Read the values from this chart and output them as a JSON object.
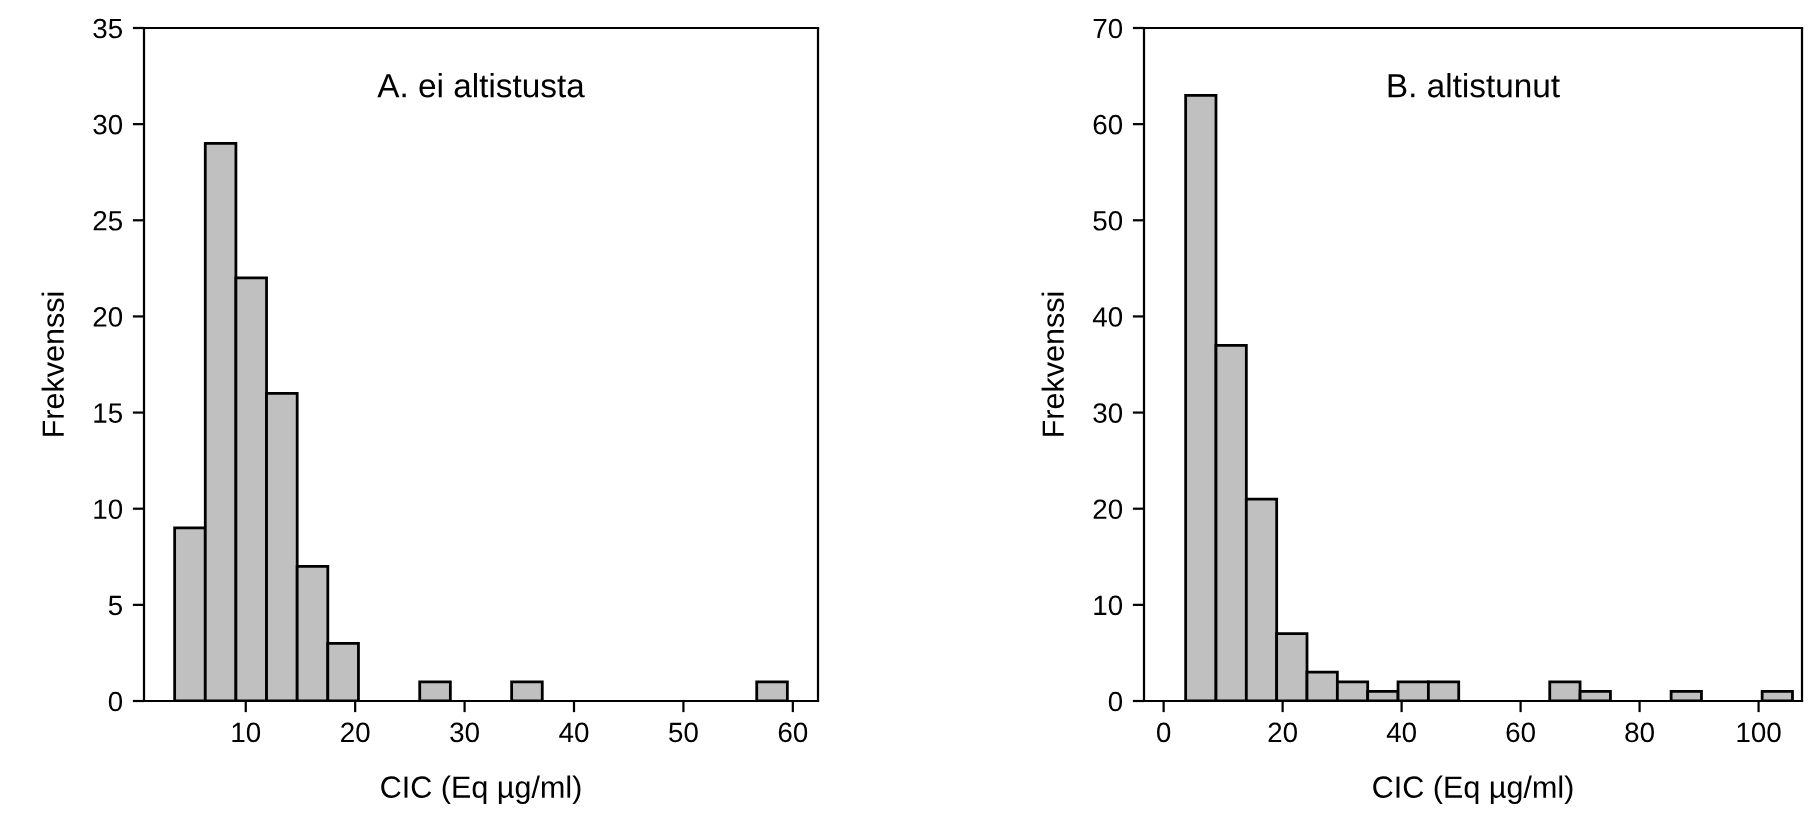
{
  "chart_data": [
    {
      "type": "histogram",
      "title": "A. ei altistusta",
      "xlabel": "CIC (Eq µg/ml)",
      "ylabel": "Frekvenssi",
      "color": "#c0c0c0",
      "bins": [
        3.5,
        6.3,
        9.1,
        11.9,
        14.7,
        17.5,
        20.3,
        23.1,
        25.9,
        28.7,
        31.5,
        34.3,
        37.1,
        39.9,
        42.7,
        45.5,
        48.3,
        51.1,
        53.9,
        56.7,
        59.5
      ],
      "values": [
        9,
        29,
        22,
        16,
        7,
        3,
        0,
        0,
        1,
        0,
        0,
        1,
        0,
        0,
        0,
        0,
        0,
        0,
        0,
        1
      ],
      "xlim": [
        0.7,
        62.3
      ],
      "xticks": [
        10,
        20,
        30,
        40,
        50,
        60
      ],
      "ylim": [
        0,
        35
      ],
      "yticks": [
        0,
        5,
        10,
        15,
        20,
        25,
        30,
        35
      ],
      "grid": false,
      "legend": false
    },
    {
      "type": "histogram",
      "title": "B. altistunut",
      "xlabel": "CIC (Eq µg/ml)",
      "ylabel": "Frekvenssi",
      "color": "#c0c0c0",
      "bins": [
        3.7,
        8.8,
        13.9,
        19.0,
        24.1,
        29.2,
        34.3,
        39.4,
        44.5,
        49.6,
        54.7,
        59.8,
        64.9,
        70.0,
        75.1,
        80.2,
        85.3,
        90.4,
        95.5,
        100.6,
        105.7
      ],
      "values": [
        63,
        37,
        21,
        7,
        3,
        2,
        1,
        2,
        2,
        0,
        0,
        0,
        2,
        1,
        0,
        0,
        1,
        0,
        0,
        1
      ],
      "xlim": [
        -3.3,
        107.3
      ],
      "xticks": [
        0,
        20,
        40,
        60,
        80,
        100
      ],
      "ylim": [
        0,
        70
      ],
      "yticks": [
        0,
        10,
        20,
        30,
        40,
        50,
        60,
        70
      ],
      "grid": false,
      "legend": false
    }
  ]
}
